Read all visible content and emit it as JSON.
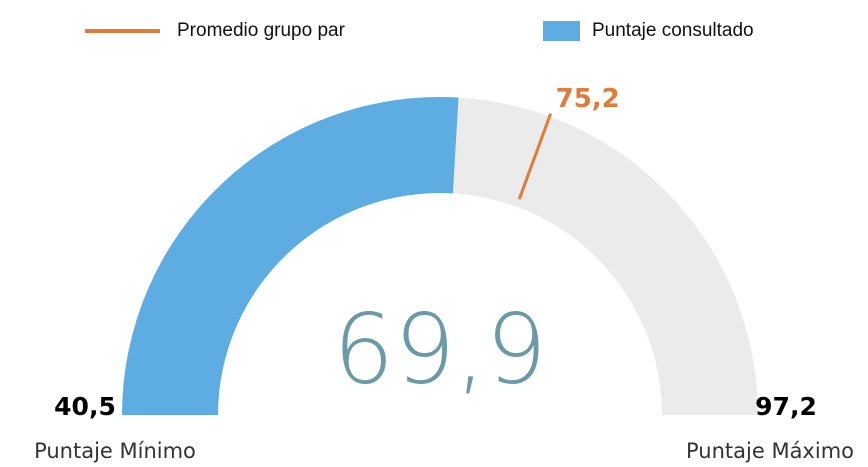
{
  "chart_data": {
    "type": "gauge",
    "series": [
      {
        "name": "Promedio grupo par",
        "color": "#e07b39",
        "values": [
          75.2
        ],
        "value_labels": [
          "75,2"
        ]
      },
      {
        "name": "Puntaje consultado",
        "color": "#5dade2",
        "values": [
          69.9
        ],
        "value_labels": [
          "69,9"
        ]
      }
    ],
    "ylim": [
      40.5,
      97.2
    ],
    "yticks": [
      {
        "value": 40.5,
        "label": "40,5"
      },
      {
        "value": 97.2,
        "label": "97,2"
      }
    ],
    "min_label": "Puntaje Mínimo",
    "max_label": "Puntaje Máximo",
    "track_color": "#ebebeb",
    "center_color": "#6a9aa8"
  }
}
